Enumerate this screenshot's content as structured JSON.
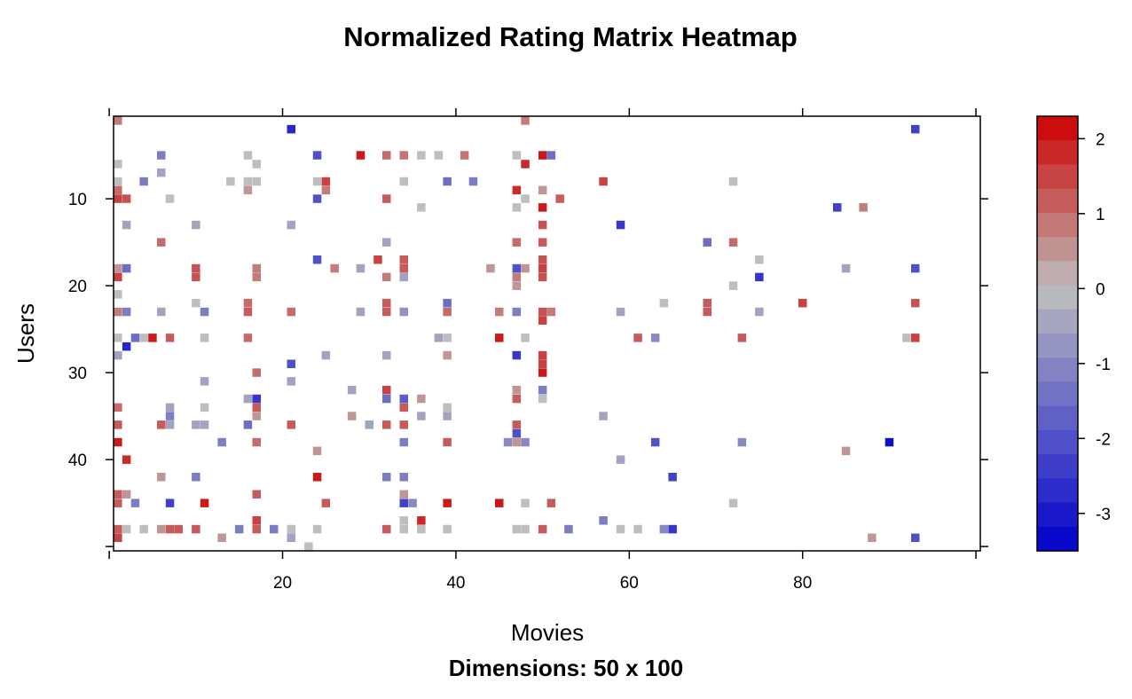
{
  "chart_data": {
    "type": "heatmap",
    "title": "Normalized Rating Matrix Heatmap",
    "xlabel": "Movies",
    "ylabel": "Users",
    "subtitle": "Dimensions: 50 x 100",
    "xlim": [
      0.5,
      100.5
    ],
    "ylim": [
      0.5,
      50.5
    ],
    "y_reversed": true,
    "x_ticks": [
      20,
      40,
      60,
      80
    ],
    "y_ticks": [
      10,
      20,
      30,
      40
    ],
    "colorbar": {
      "min": -3.5,
      "max": 2.3,
      "ticks": [
        2,
        1,
        0,
        -1,
        -2,
        -3
      ],
      "low_color": "#0000CD",
      "mid_color": "#BEBEBE",
      "high_color": "#CD0000"
    },
    "cells": [
      [
        1,
        1,
        0.8
      ],
      [
        48,
        1,
        0.8
      ],
      [
        21,
        2,
        -2.8
      ],
      [
        93,
        2,
        -2.3
      ],
      [
        6,
        5,
        -1.2
      ],
      [
        16,
        5,
        0
      ],
      [
        24,
        5,
        -2
      ],
      [
        29,
        5,
        2
      ],
      [
        32,
        5,
        1
      ],
      [
        34,
        5,
        0.9
      ],
      [
        36,
        5,
        0
      ],
      [
        38,
        5,
        0
      ],
      [
        41,
        5,
        0.9
      ],
      [
        47,
        5,
        0
      ],
      [
        50,
        5,
        2
      ],
      [
        51,
        5,
        -1.5
      ],
      [
        1,
        6,
        0
      ],
      [
        17,
        6,
        0
      ],
      [
        48,
        6,
        1.8
      ],
      [
        6,
        7,
        -0.5
      ],
      [
        1,
        8,
        0
      ],
      [
        4,
        8,
        -1.2
      ],
      [
        14,
        8,
        0
      ],
      [
        16,
        8,
        0
      ],
      [
        17,
        8,
        0
      ],
      [
        24,
        8,
        0
      ],
      [
        25,
        8,
        1.5
      ],
      [
        34,
        8,
        0
      ],
      [
        39,
        8,
        -1.5
      ],
      [
        42,
        8,
        -1.2
      ],
      [
        57,
        8,
        1.5
      ],
      [
        72,
        8,
        0
      ],
      [
        1,
        9,
        1
      ],
      [
        16,
        9,
        0.5
      ],
      [
        25,
        9,
        0.8
      ],
      [
        47,
        9,
        1.8
      ],
      [
        50,
        9,
        0.5
      ],
      [
        1,
        10,
        1.5
      ],
      [
        2,
        10,
        1.3
      ],
      [
        7,
        10,
        0
      ],
      [
        24,
        10,
        -2
      ],
      [
        32,
        10,
        1.2
      ],
      [
        48,
        10,
        0
      ],
      [
        52,
        10,
        1.2
      ],
      [
        36,
        11,
        0
      ],
      [
        47,
        11,
        0
      ],
      [
        50,
        11,
        2
      ],
      [
        84,
        11,
        -2.3
      ],
      [
        87,
        11,
        0.8
      ],
      [
        2,
        13,
        -0.5
      ],
      [
        10,
        13,
        -0.5
      ],
      [
        21,
        13,
        -0.5
      ],
      [
        50,
        13,
        1.3
      ],
      [
        59,
        13,
        -2.5
      ],
      [
        6,
        15,
        1
      ],
      [
        32,
        15,
        -0.5
      ],
      [
        47,
        15,
        1
      ],
      [
        50,
        15,
        1.2
      ],
      [
        69,
        15,
        -1.5
      ],
      [
        72,
        15,
        1
      ],
      [
        75,
        17,
        0
      ],
      [
        24,
        17,
        -2
      ],
      [
        31,
        17,
        1.5
      ],
      [
        34,
        17,
        1.2
      ],
      [
        50,
        17,
        1.3
      ],
      [
        1,
        18,
        0.5
      ],
      [
        2,
        18,
        -1.5
      ],
      [
        10,
        18,
        1.3
      ],
      [
        17,
        18,
        0.8
      ],
      [
        26,
        18,
        0.8
      ],
      [
        29,
        18,
        -0.5
      ],
      [
        34,
        18,
        1.2
      ],
      [
        44,
        18,
        0.5
      ],
      [
        47,
        18,
        -2
      ],
      [
        48,
        18,
        0.5
      ],
      [
        50,
        18,
        1.5
      ],
      [
        85,
        18,
        -0.5
      ],
      [
        93,
        18,
        -2
      ],
      [
        1,
        19,
        1.5
      ],
      [
        10,
        19,
        1.3
      ],
      [
        17,
        19,
        0.8
      ],
      [
        32,
        19,
        0.8
      ],
      [
        34,
        19,
        -0.5
      ],
      [
        47,
        19,
        0.8
      ],
      [
        50,
        19,
        1.3
      ],
      [
        75,
        19,
        -2.5
      ],
      [
        47,
        20,
        0.5
      ],
      [
        72,
        20,
        0
      ],
      [
        1,
        21,
        0
      ],
      [
        10,
        22,
        0
      ],
      [
        16,
        22,
        1
      ],
      [
        32,
        22,
        1.2
      ],
      [
        39,
        22,
        -1.5
      ],
      [
        64,
        22,
        0
      ],
      [
        69,
        22,
        1.2
      ],
      [
        80,
        22,
        1.5
      ],
      [
        93,
        22,
        1.3
      ],
      [
        1,
        23,
        0.8
      ],
      [
        2,
        23,
        -1.2
      ],
      [
        6,
        23,
        -0.5
      ],
      [
        11,
        23,
        -1.2
      ],
      [
        16,
        23,
        1.2
      ],
      [
        21,
        23,
        1
      ],
      [
        29,
        23,
        -0.5
      ],
      [
        32,
        23,
        1.2
      ],
      [
        34,
        23,
        -0.8
      ],
      [
        39,
        23,
        1
      ],
      [
        45,
        23,
        0.8
      ],
      [
        47,
        23,
        -1.2
      ],
      [
        50,
        23,
        1.3
      ],
      [
        51,
        23,
        0.8
      ],
      [
        59,
        23,
        -0.5
      ],
      [
        69,
        23,
        1.2
      ],
      [
        75,
        23,
        -0.5
      ],
      [
        50,
        24,
        1.5
      ],
      [
        1,
        26,
        0
      ],
      [
        3,
        26,
        -1.5
      ],
      [
        4,
        26,
        0
      ],
      [
        5,
        26,
        2
      ],
      [
        7,
        26,
        1.2
      ],
      [
        11,
        26,
        0
      ],
      [
        16,
        26,
        1
      ],
      [
        38,
        26,
        -0.5
      ],
      [
        39,
        26,
        0
      ],
      [
        45,
        26,
        2
      ],
      [
        48,
        26,
        0
      ],
      [
        61,
        26,
        1.2
      ],
      [
        63,
        26,
        -1
      ],
      [
        73,
        26,
        1.2
      ],
      [
        92,
        26,
        0
      ],
      [
        93,
        26,
        1.5
      ],
      [
        2,
        27,
        -2.8
      ],
      [
        1,
        28,
        -0.5
      ],
      [
        25,
        28,
        -0.5
      ],
      [
        32,
        28,
        -0.5
      ],
      [
        39,
        28,
        0.5
      ],
      [
        47,
        28,
        -2.5
      ],
      [
        50,
        28,
        1.5
      ],
      [
        21,
        29,
        -2
      ],
      [
        50,
        29,
        1.5
      ],
      [
        17,
        30,
        1
      ],
      [
        50,
        30,
        2
      ],
      [
        11,
        31,
        -0.5
      ],
      [
        21,
        31,
        -0.5
      ],
      [
        28,
        32,
        -0.5
      ],
      [
        32,
        32,
        1.5
      ],
      [
        47,
        32,
        0.5
      ],
      [
        50,
        32,
        -1.2
      ],
      [
        16,
        33,
        -0.5
      ],
      [
        17,
        33,
        -2.5
      ],
      [
        32,
        33,
        -1.5
      ],
      [
        34,
        33,
        -1.8
      ],
      [
        36,
        33,
        0.5
      ],
      [
        47,
        33,
        1.2
      ],
      [
        50,
        33,
        0
      ],
      [
        1,
        34,
        1
      ],
      [
        7,
        34,
        -0.5
      ],
      [
        11,
        34,
        0
      ],
      [
        17,
        34,
        1.2
      ],
      [
        34,
        34,
        1.2
      ],
      [
        39,
        34,
        0
      ],
      [
        7,
        35,
        -1.2
      ],
      [
        17,
        35,
        0.5
      ],
      [
        28,
        35,
        0.5
      ],
      [
        36,
        35,
        -0.5
      ],
      [
        39,
        35,
        -0.5
      ],
      [
        57,
        35,
        -0.5
      ],
      [
        1,
        36,
        1.2
      ],
      [
        6,
        36,
        1.2
      ],
      [
        7,
        36,
        -0.5
      ],
      [
        10,
        36,
        -0.5
      ],
      [
        11,
        36,
        -0.5
      ],
      [
        16,
        36,
        -1.5
      ],
      [
        21,
        36,
        1.2
      ],
      [
        30,
        36,
        -0.5
      ],
      [
        32,
        36,
        1.2
      ],
      [
        34,
        36,
        1.2
      ],
      [
        47,
        36,
        1.2
      ],
      [
        47,
        37,
        -2
      ],
      [
        1,
        38,
        2
      ],
      [
        13,
        38,
        -1.2
      ],
      [
        17,
        38,
        1
      ],
      [
        34,
        38,
        -1.2
      ],
      [
        39,
        38,
        1.2
      ],
      [
        46,
        38,
        -1
      ],
      [
        47,
        38,
        0.5
      ],
      [
        48,
        38,
        -1
      ],
      [
        63,
        38,
        -2
      ],
      [
        73,
        38,
        -1
      ],
      [
        90,
        38,
        -3.2
      ],
      [
        24,
        39,
        0.5
      ],
      [
        85,
        39,
        0.5
      ],
      [
        2,
        40,
        1.8
      ],
      [
        59,
        40,
        -0.5
      ],
      [
        6,
        42,
        0.5
      ],
      [
        10,
        42,
        -1.2
      ],
      [
        24,
        42,
        2
      ],
      [
        32,
        42,
        -1.2
      ],
      [
        34,
        42,
        -1.2
      ],
      [
        65,
        42,
        -2.3
      ],
      [
        1,
        44,
        1.2
      ],
      [
        2,
        44,
        0.5
      ],
      [
        17,
        44,
        1.2
      ],
      [
        34,
        44,
        0.5
      ],
      [
        1,
        45,
        1.2
      ],
      [
        3,
        45,
        -1.2
      ],
      [
        7,
        45,
        -2.3
      ],
      [
        11,
        45,
        2
      ],
      [
        25,
        45,
        1.2
      ],
      [
        34,
        45,
        -2.3
      ],
      [
        35,
        45,
        -1
      ],
      [
        39,
        45,
        2
      ],
      [
        45,
        45,
        2
      ],
      [
        48,
        45,
        0
      ],
      [
        51,
        45,
        1.2
      ],
      [
        72,
        45,
        0
      ],
      [
        17,
        47,
        1.5
      ],
      [
        34,
        47,
        0
      ],
      [
        36,
        47,
        1.8
      ],
      [
        57,
        47,
        -1.2
      ],
      [
        1,
        48,
        1.2
      ],
      [
        2,
        48,
        0
      ],
      [
        4,
        48,
        0
      ],
      [
        6,
        48,
        0.5
      ],
      [
        7,
        48,
        1.2
      ],
      [
        8,
        48,
        1.2
      ],
      [
        10,
        48,
        1.2
      ],
      [
        15,
        48,
        -1.2
      ],
      [
        17,
        48,
        1.2
      ],
      [
        19,
        48,
        -1.2
      ],
      [
        21,
        48,
        0
      ],
      [
        24,
        48,
        0
      ],
      [
        32,
        48,
        1.2
      ],
      [
        34,
        48,
        0
      ],
      [
        36,
        48,
        0
      ],
      [
        39,
        48,
        0
      ],
      [
        47,
        48,
        0
      ],
      [
        48,
        48,
        0
      ],
      [
        50,
        48,
        1.2
      ],
      [
        53,
        48,
        -1.2
      ],
      [
        59,
        48,
        0
      ],
      [
        61,
        48,
        0
      ],
      [
        64,
        48,
        -1
      ],
      [
        65,
        48,
        -2.5
      ],
      [
        1,
        49,
        1.5
      ],
      [
        13,
        49,
        0.5
      ],
      [
        21,
        49,
        -0.5
      ],
      [
        88,
        49,
        0.5
      ],
      [
        93,
        49,
        -2
      ],
      [
        23,
        50,
        0
      ]
    ]
  }
}
